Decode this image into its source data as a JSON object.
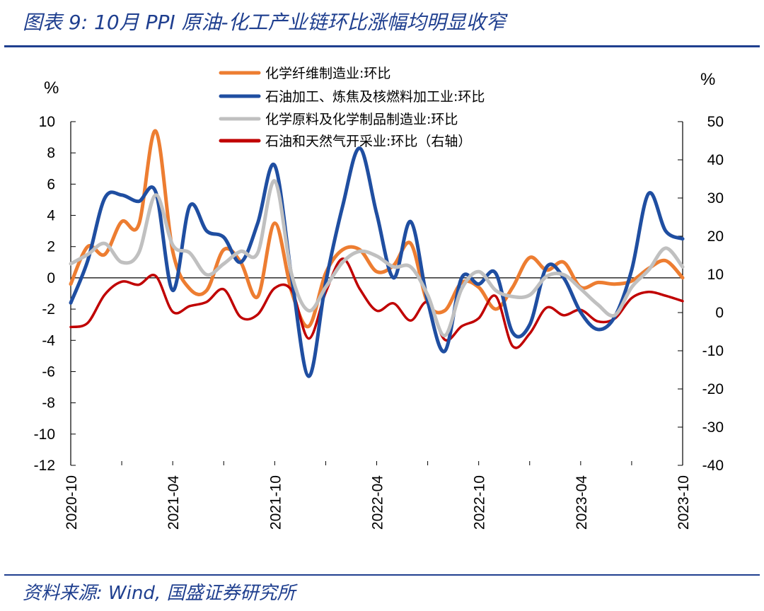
{
  "header": {
    "title": "图表 9: 10月 PPI 原油-化工产业链环比涨幅均明显收窄"
  },
  "footer": {
    "source": "资料来源: Wind, 国盛证券研究所"
  },
  "chart_data": {
    "type": "line",
    "title": "",
    "left_axis": {
      "unit": "%",
      "min": -12,
      "max": 10,
      "ticks": [
        10,
        8,
        6,
        4,
        2,
        0,
        -2,
        -4,
        -6,
        -8,
        -10,
        -12
      ]
    },
    "right_axis": {
      "unit": "%",
      "min": -40,
      "max": 50,
      "ticks": [
        50,
        40,
        30,
        20,
        10,
        0,
        -10,
        -20,
        -30,
        -40
      ]
    },
    "x_tick_labels": [
      "2020-10",
      "2021-04",
      "2021-10",
      "2022-04",
      "2022-10",
      "2023-04",
      "2023-10"
    ],
    "x": [
      "2020-10",
      "2020-11",
      "2020-12",
      "2021-01",
      "2021-02",
      "2021-03",
      "2021-04",
      "2021-05",
      "2021-06",
      "2021-07",
      "2021-08",
      "2021-09",
      "2021-10",
      "2021-11",
      "2021-12",
      "2022-01",
      "2022-02",
      "2022-03",
      "2022-04",
      "2022-05",
      "2022-06",
      "2022-07",
      "2022-08",
      "2022-09",
      "2022-10",
      "2022-11",
      "2022-12",
      "2023-01",
      "2023-02",
      "2023-03",
      "2023-04",
      "2023-05",
      "2023-06",
      "2023-07",
      "2023-08",
      "2023-09",
      "2023-10"
    ],
    "series": [
      {
        "name": "化学纤维制造业:环比",
        "axis": "left",
        "color": "#ed7d31",
        "values": [
          -0.4,
          2.0,
          1.5,
          3.6,
          3.4,
          9.4,
          1.7,
          -0.7,
          -0.8,
          1.8,
          1.0,
          -1.2,
          3.5,
          -0.9,
          -3.1,
          0.3,
          1.8,
          1.8,
          0.4,
          0.8,
          2.2,
          -1.6,
          -2.1,
          -0.3,
          -0.6,
          -2.0,
          -0.6,
          1.3,
          0.5,
          1.0,
          -0.6,
          -0.3,
          -0.4,
          -0.2,
          0.6,
          1.1,
          0.0
        ]
      },
      {
        "name": "石油加工、炼焦及核燃料加工业:环比",
        "axis": "left",
        "color": "#1f4ea1",
        "values": [
          -1.6,
          1.1,
          5.1,
          5.3,
          4.9,
          5.5,
          -0.8,
          4.6,
          3.0,
          2.6,
          1.0,
          3.5,
          7.2,
          0.0,
          -6.3,
          -0.3,
          4.6,
          8.3,
          4.1,
          0.0,
          3.6,
          -1.5,
          -4.7,
          0.0,
          -0.4,
          0.3,
          -3.5,
          -3.0,
          0.7,
          0.0,
          -2.2,
          -3.3,
          -2.5,
          0.5,
          5.4,
          3.0,
          2.5
        ]
      },
      {
        "name": "化学原料及化学制品制造业:环比",
        "axis": "left",
        "color": "#c0c0c0",
        "values": [
          0.9,
          1.5,
          2.2,
          1.0,
          1.6,
          5.3,
          2.1,
          1.6,
          0.2,
          0.9,
          1.7,
          1.6,
          6.2,
          0.2,
          -2.1,
          -0.6,
          1.0,
          1.7,
          1.4,
          0.7,
          0.7,
          -1.1,
          -3.7,
          -0.7,
          0.4,
          -0.8,
          -1.2,
          -1.1,
          0.1,
          0.2,
          -0.7,
          -1.7,
          -2.4,
          -0.6,
          0.5,
          1.9,
          0.7
        ]
      },
      {
        "name": "石油和天然气开采业:环比（右轴）",
        "axis": "right",
        "color": "#c00000",
        "values": [
          -3.8,
          -2.7,
          4.7,
          8.1,
          7.3,
          9.6,
          0.2,
          1.7,
          2.8,
          6.1,
          -1.2,
          -0.5,
          6.4,
          5.8,
          -6.8,
          5.3,
          14.1,
          6.2,
          0.5,
          2.4,
          -2.1,
          2.7,
          -7.1,
          -3.6,
          -1.5,
          4.3,
          -8.8,
          -5.5,
          1.3,
          -0.7,
          0.7,
          -2.3,
          -1.6,
          3.8,
          5.4,
          4.4,
          3.0
        ]
      }
    ]
  }
}
